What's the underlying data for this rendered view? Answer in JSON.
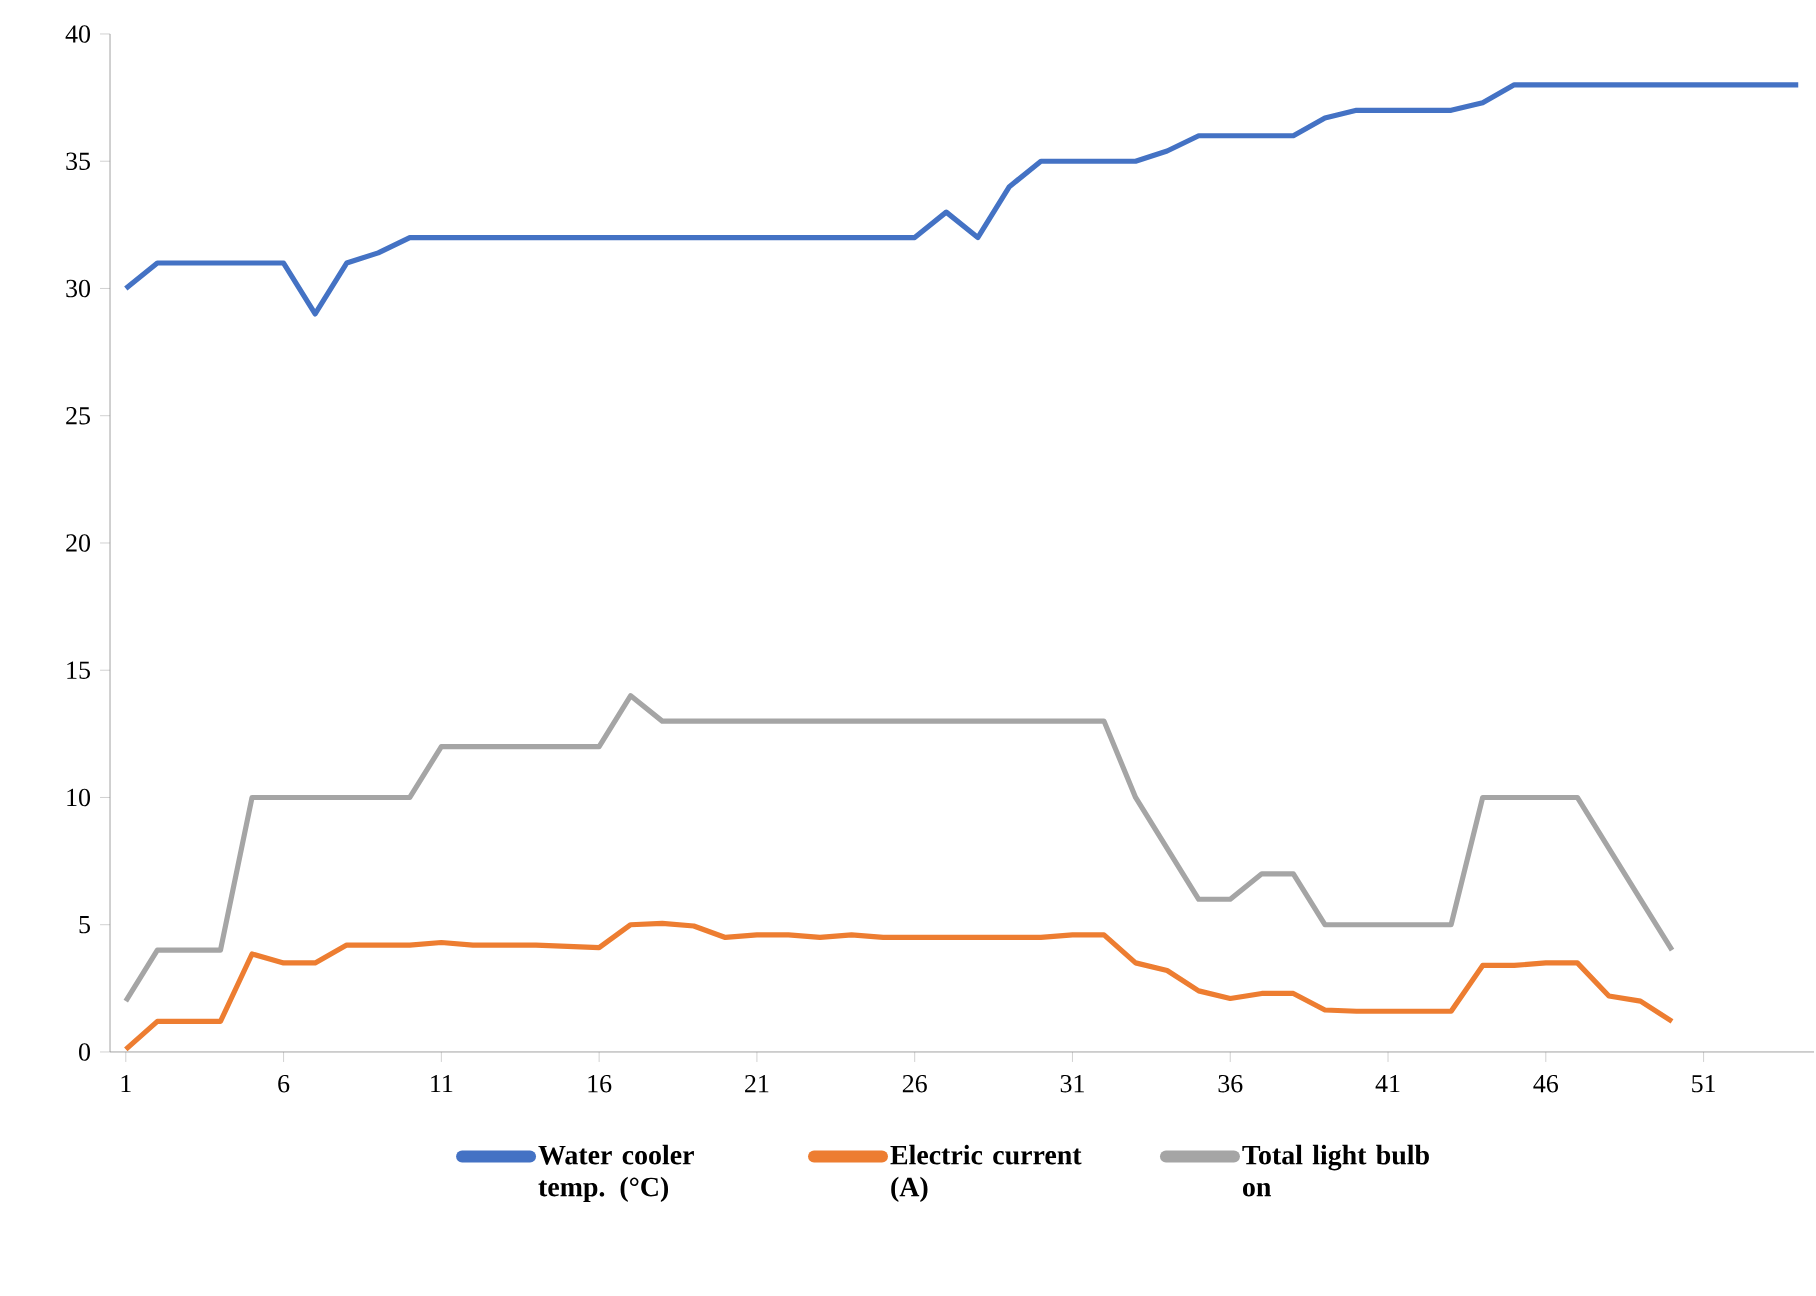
{
  "chart_data": {
    "type": "line",
    "x": [
      1,
      2,
      3,
      4,
      5,
      6,
      7,
      8,
      9,
      10,
      11,
      12,
      13,
      14,
      15,
      16,
      17,
      18,
      19,
      20,
      21,
      22,
      23,
      24,
      25,
      26,
      27,
      28,
      29,
      30,
      31,
      32,
      33,
      34,
      35,
      36,
      37,
      38,
      39,
      40,
      41,
      42,
      43,
      44,
      45,
      46,
      47,
      48,
      49,
      50,
      51,
      52,
      53,
      54
    ],
    "xlim": [
      0.5,
      54.5
    ],
    "xticks": [
      1,
      6,
      11,
      16,
      21,
      26,
      31,
      36,
      41,
      46,
      51
    ],
    "ylim": [
      0,
      40
    ],
    "yticks": [
      0,
      5,
      10,
      15,
      20,
      25,
      30,
      35,
      40
    ],
    "legend": "bottom",
    "series": [
      {
        "name": "Water cooler temp. (°C)",
        "color": "#4472c4",
        "values": [
          30,
          31,
          31,
          31,
          31,
          31,
          29,
          31,
          31.4,
          32,
          32,
          32,
          32,
          32,
          32,
          32,
          32,
          32,
          32,
          32,
          32,
          32,
          32,
          32,
          32,
          32,
          33,
          32,
          34,
          35,
          35,
          35,
          35,
          35.4,
          36,
          36,
          36,
          36,
          36.7,
          37,
          37,
          37,
          37,
          37.3,
          38,
          38,
          38,
          38,
          38,
          38,
          38,
          38,
          38,
          38
        ]
      },
      {
        "name": "Electric current (A)",
        "color": "#ed7d31",
        "values": [
          0.1,
          1.2,
          1.2,
          1.2,
          3.85,
          3.5,
          3.5,
          4.2,
          4.2,
          4.2,
          4.3,
          4.2,
          4.2,
          4.2,
          4.15,
          4.1,
          5,
          5.05,
          4.95,
          4.5,
          4.6,
          4.6,
          4.5,
          4.6,
          4.5,
          4.5,
          4.5,
          4.5,
          4.5,
          4.5,
          4.6,
          4.6,
          3.5,
          3.2,
          2.4,
          2.1,
          2.3,
          2.3,
          1.65,
          1.6,
          1.6,
          1.6,
          1.6,
          3.4,
          3.4,
          3.5,
          3.5,
          2.2,
          2,
          1.2,
          null,
          null,
          null,
          null
        ]
      },
      {
        "name": "Total light bulb on",
        "color": "#a5a5a5",
        "values": [
          2,
          4,
          4,
          4,
          10,
          10,
          10,
          10,
          10,
          10,
          12,
          12,
          12,
          12,
          12,
          12,
          14,
          13,
          13,
          13,
          13,
          13,
          13,
          13,
          13,
          13,
          13,
          13,
          13,
          13,
          13,
          13,
          10,
          8,
          6,
          6,
          7,
          7,
          5,
          5,
          5,
          5,
          5,
          10,
          10,
          10,
          10,
          8,
          6,
          4,
          null,
          null,
          null,
          null
        ]
      }
    ]
  }
}
